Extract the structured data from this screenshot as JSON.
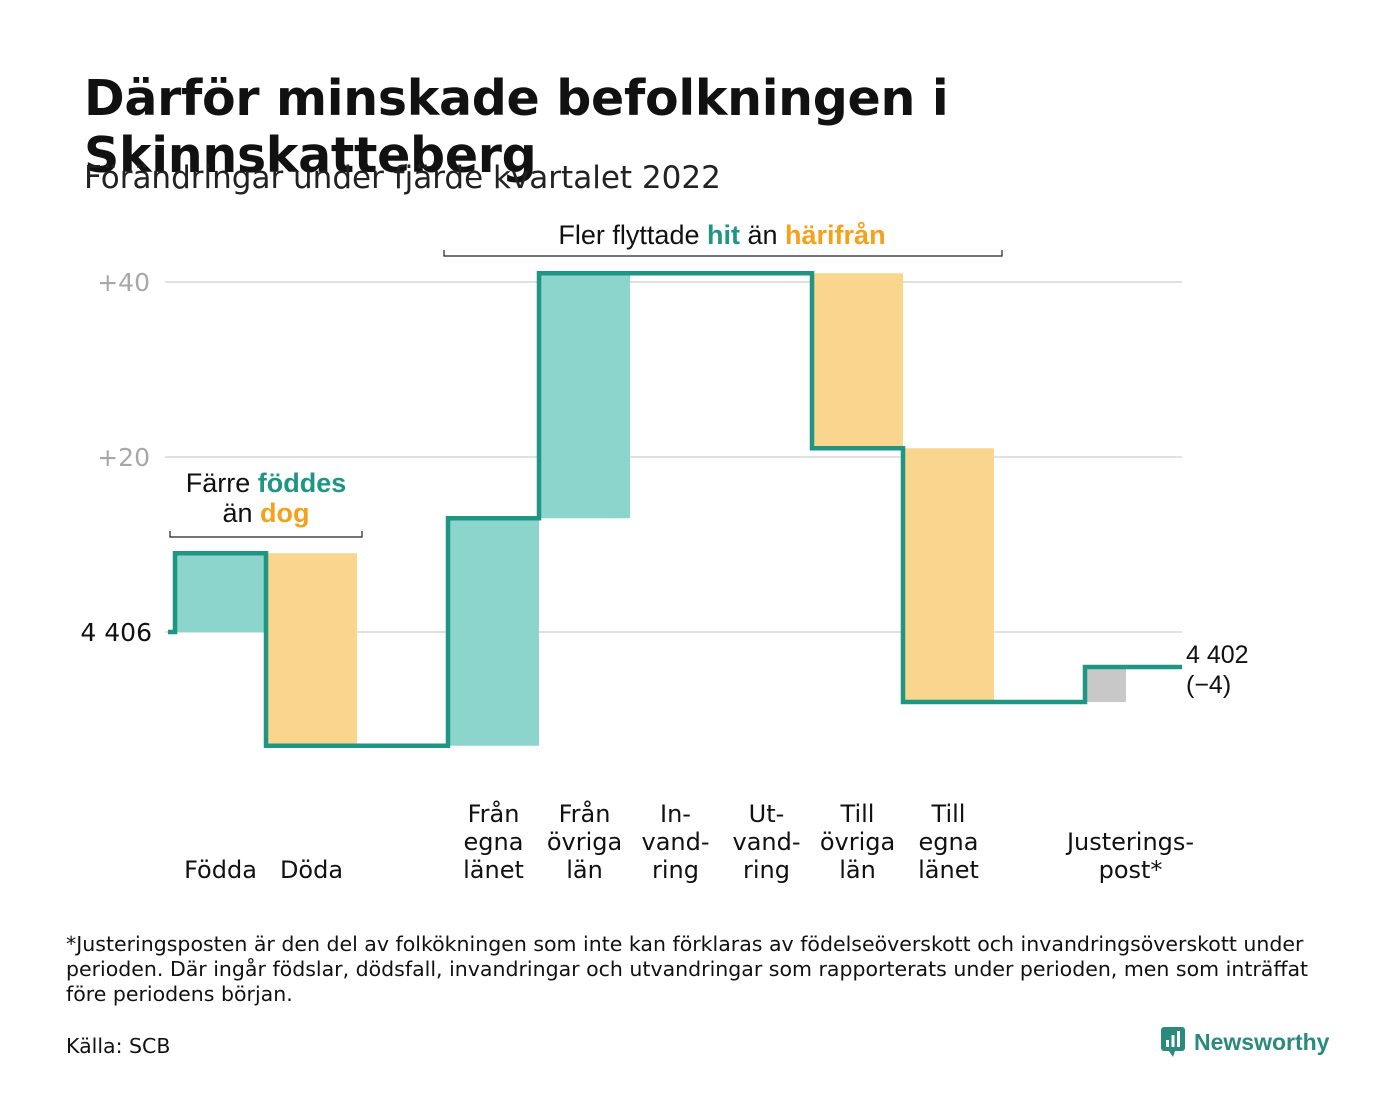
{
  "title": "Därför minskade befolkningen i Skinnskatteberg",
  "subtitle": "Förändringar under fjärde kvartalet 2022",
  "colors": {
    "step_line": "#1f9583",
    "increase": "#8cd5cc",
    "decrease": "#f9d58d",
    "adjustment": "#c8c8c8",
    "teal_text": "#1f9583",
    "orange_text": "#f5a11c",
    "grid": "#e1e1e1",
    "tick": "#a8a8a8"
  },
  "annotations": {
    "births_deaths": {
      "line1_prefix": "Färre ",
      "line1_highlight": "föddes",
      "line2_prefix": "än ",
      "line2_highlight": "dog"
    },
    "migration": {
      "prefix": "Fler flyttade ",
      "highlight1": "hit",
      "middle": " än ",
      "highlight2": "härifrån"
    }
  },
  "chart_data": {
    "type": "waterfall",
    "start_label": "4 406",
    "end_label_value": "4 402",
    "end_label_change": "(−4)",
    "start_value": 4406,
    "end_value": 4402,
    "y_ticks": [
      {
        "offset": 20,
        "label": "+20"
      },
      {
        "offset": 40,
        "label": "+40"
      }
    ],
    "ylim_offset": [
      -15,
      41
    ],
    "steps": [
      {
        "label": [
          "Födda"
        ],
        "change": 9,
        "kind": "increase"
      },
      {
        "label": [
          "Döda"
        ],
        "change": -22,
        "kind": "decrease"
      },
      {
        "label": [],
        "change": 0,
        "kind": "gap"
      },
      {
        "label": [
          "Från",
          "egna",
          "länet"
        ],
        "change": 26,
        "kind": "increase"
      },
      {
        "label": [
          "Från",
          "övriga",
          "län"
        ],
        "change": 28,
        "kind": "increase"
      },
      {
        "label": [
          "In-",
          "vand-",
          "ring"
        ],
        "change": 0,
        "kind": "increase"
      },
      {
        "label": [
          "Ut-",
          "vand-",
          "ring"
        ],
        "change": 0,
        "kind": "decrease"
      },
      {
        "label": [
          "Till",
          "övriga",
          "län"
        ],
        "change": -20,
        "kind": "decrease"
      },
      {
        "label": [
          "Till",
          "egna",
          "länet"
        ],
        "change": -29,
        "kind": "decrease"
      },
      {
        "label": [],
        "change": 0,
        "kind": "gap"
      },
      {
        "label": [
          "Justerings-",
          "post*"
        ],
        "change": 4,
        "kind": "adjustment"
      }
    ]
  },
  "footnote": "*Justeringsposten är den del av folkökningen som inte kan förklaras av födelseöverskott och invandringsöverskott under perioden. Där ingår födslar, dödsfall, invandringar och utvandringar som rapporterats under perioden, men som inträffat före periodens början.",
  "source": "Källa: SCB",
  "brand": "Newsworthy"
}
